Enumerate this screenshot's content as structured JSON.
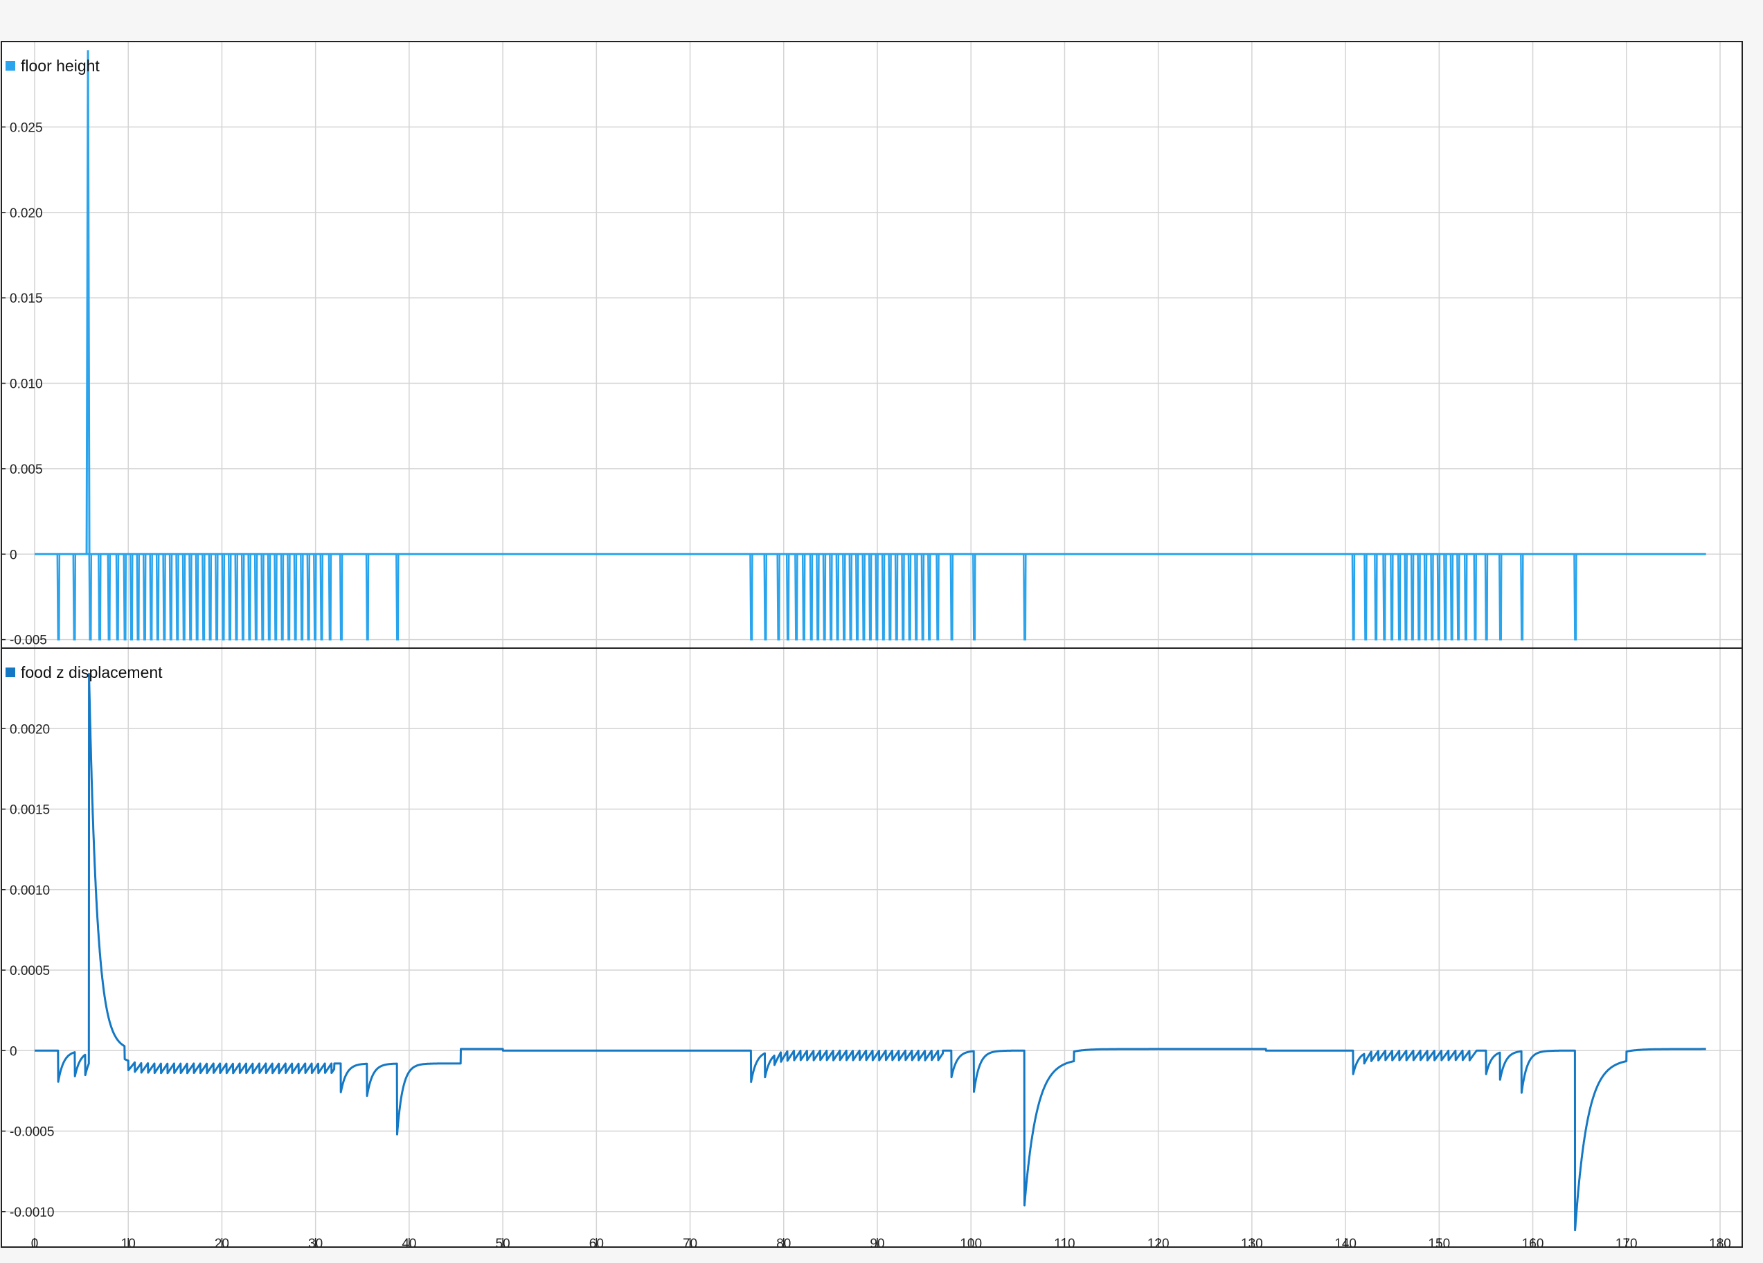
{
  "colors": {
    "panel1_series": "#2aa4ec",
    "panel2_series": "#1478c4",
    "grid": "#d4d4d4",
    "frame": "#222222",
    "background": "#ffffff"
  },
  "chart_data": [
    {
      "type": "line",
      "legend": "floor height",
      "legend_position": "top-left",
      "grid": true,
      "xlim": [
        0,
        180
      ],
      "ylim": [
        -0.0055,
        0.03
      ],
      "y_ticks": [
        {
          "value": 0.025,
          "label": "0.025"
        },
        {
          "value": 0.02,
          "label": "0.020"
        },
        {
          "value": 0.015,
          "label": "0.015"
        },
        {
          "value": 0.01,
          "label": "0.010"
        },
        {
          "value": 0.005,
          "label": "0.005"
        },
        {
          "value": 0,
          "label": "0"
        },
        {
          "value": -0.005,
          "label": "-0.005"
        }
      ],
      "baseline": 0,
      "x_start": 0,
      "x_end": 178.5,
      "spike": {
        "x": 5.7,
        "peak": 0.0295
      },
      "drop_level": -0.005,
      "drops_x": [
        2.5,
        4.2,
        5.9,
        6.9,
        7.9,
        8.8,
        9.6,
        10.3,
        11.0,
        11.7,
        12.4,
        13.1,
        13.8,
        14.5,
        15.2,
        15.9,
        16.6,
        17.3,
        18.0,
        18.7,
        19.4,
        20.1,
        20.8,
        21.5,
        22.2,
        22.9,
        23.6,
        24.3,
        25.0,
        25.7,
        26.4,
        27.1,
        27.8,
        28.5,
        29.2,
        29.9,
        30.6,
        31.5,
        32.7,
        35.5,
        38.7,
        76.5,
        78.0,
        79.4,
        80.4,
        81.3,
        82.1,
        82.9,
        83.6,
        84.3,
        85.0,
        85.7,
        86.4,
        87.1,
        87.8,
        88.5,
        89.2,
        89.9,
        90.6,
        91.3,
        92.0,
        92.7,
        93.4,
        94.1,
        94.8,
        95.5,
        96.4,
        97.9,
        100.3,
        105.7,
        140.8,
        142.1,
        143.2,
        144.1,
        144.9,
        145.7,
        146.4,
        147.1,
        147.8,
        148.5,
        149.2,
        149.9,
        150.6,
        151.3,
        152.0,
        152.8,
        153.8,
        155.0,
        156.5,
        158.8,
        164.5
      ]
    },
    {
      "type": "line",
      "legend": "food z displacement",
      "legend_position": "top-left",
      "grid": true,
      "xlim": [
        0,
        180
      ],
      "ylim": [
        -0.00113,
        0.0025
      ],
      "y_ticks": [
        {
          "value": 0.002,
          "label": "0.0020"
        },
        {
          "value": 0.0015,
          "label": "0.0015"
        },
        {
          "value": 0.001,
          "label": "0.0010"
        },
        {
          "value": 0.0005,
          "label": "0.0005"
        },
        {
          "value": 0,
          "label": "0"
        },
        {
          "value": -0.0005,
          "label": "-0.0005"
        },
        {
          "value": -0.001,
          "label": "-0.0010"
        }
      ],
      "x_ticks": [
        0,
        10,
        20,
        30,
        40,
        50,
        60,
        70,
        80,
        90,
        100,
        110,
        120,
        130,
        140,
        150,
        160,
        170,
        180
      ],
      "x_start": 0,
      "x_end": 178.5,
      "spike": {
        "x": 5.8,
        "peak": 0.00245,
        "decay_end_x": 9.6
      },
      "settle_offsets": [
        [
          9.6,
          -8e-05
        ],
        [
          39.0,
          -8e-05
        ],
        [
          45.5,
          1e-05
        ],
        [
          50.0,
          0.0
        ],
        [
          76.5,
          0.0
        ],
        [
          105.7,
          -5e-05
        ],
        [
          111.0,
          1e-05
        ],
        [
          131.5,
          0.0
        ],
        [
          140.8,
          0.0
        ],
        [
          164.5,
          -5e-05
        ],
        [
          170.0,
          1e-05
        ]
      ],
      "dips": [
        {
          "x": 2.5,
          "depth": -0.0002
        },
        {
          "x": 4.3,
          "depth": -0.00015
        },
        {
          "x": 5.4,
          "depth": -0.00013
        },
        {
          "x": 32.7,
          "depth": -0.00018
        },
        {
          "x": 35.5,
          "depth": -0.0002
        },
        {
          "x": 38.7,
          "depth": -0.00045
        },
        {
          "x": 76.5,
          "depth": -0.0002
        },
        {
          "x": 78.0,
          "depth": -0.00015
        },
        {
          "x": 97.9,
          "depth": -0.00017
        },
        {
          "x": 100.3,
          "depth": -0.00026
        },
        {
          "x": 105.7,
          "depth": -0.00092
        },
        {
          "x": 140.8,
          "depth": -0.00015
        },
        {
          "x": 155.0,
          "depth": -0.00015
        },
        {
          "x": 156.5,
          "depth": -0.00017
        },
        {
          "x": 158.8,
          "depth": -0.00026
        },
        {
          "x": 164.5,
          "depth": -0.00108
        }
      ],
      "ripple_segments": [
        {
          "x_from": 10.0,
          "x_to": 32.0,
          "amplitude": 6e-05,
          "period": 0.7
        },
        {
          "x_from": 79.0,
          "x_to": 97.0,
          "amplitude": 6e-05,
          "period": 0.7
        },
        {
          "x_from": 142.0,
          "x_to": 154.0,
          "amplitude": 6e-05,
          "period": 0.75
        }
      ]
    }
  ]
}
